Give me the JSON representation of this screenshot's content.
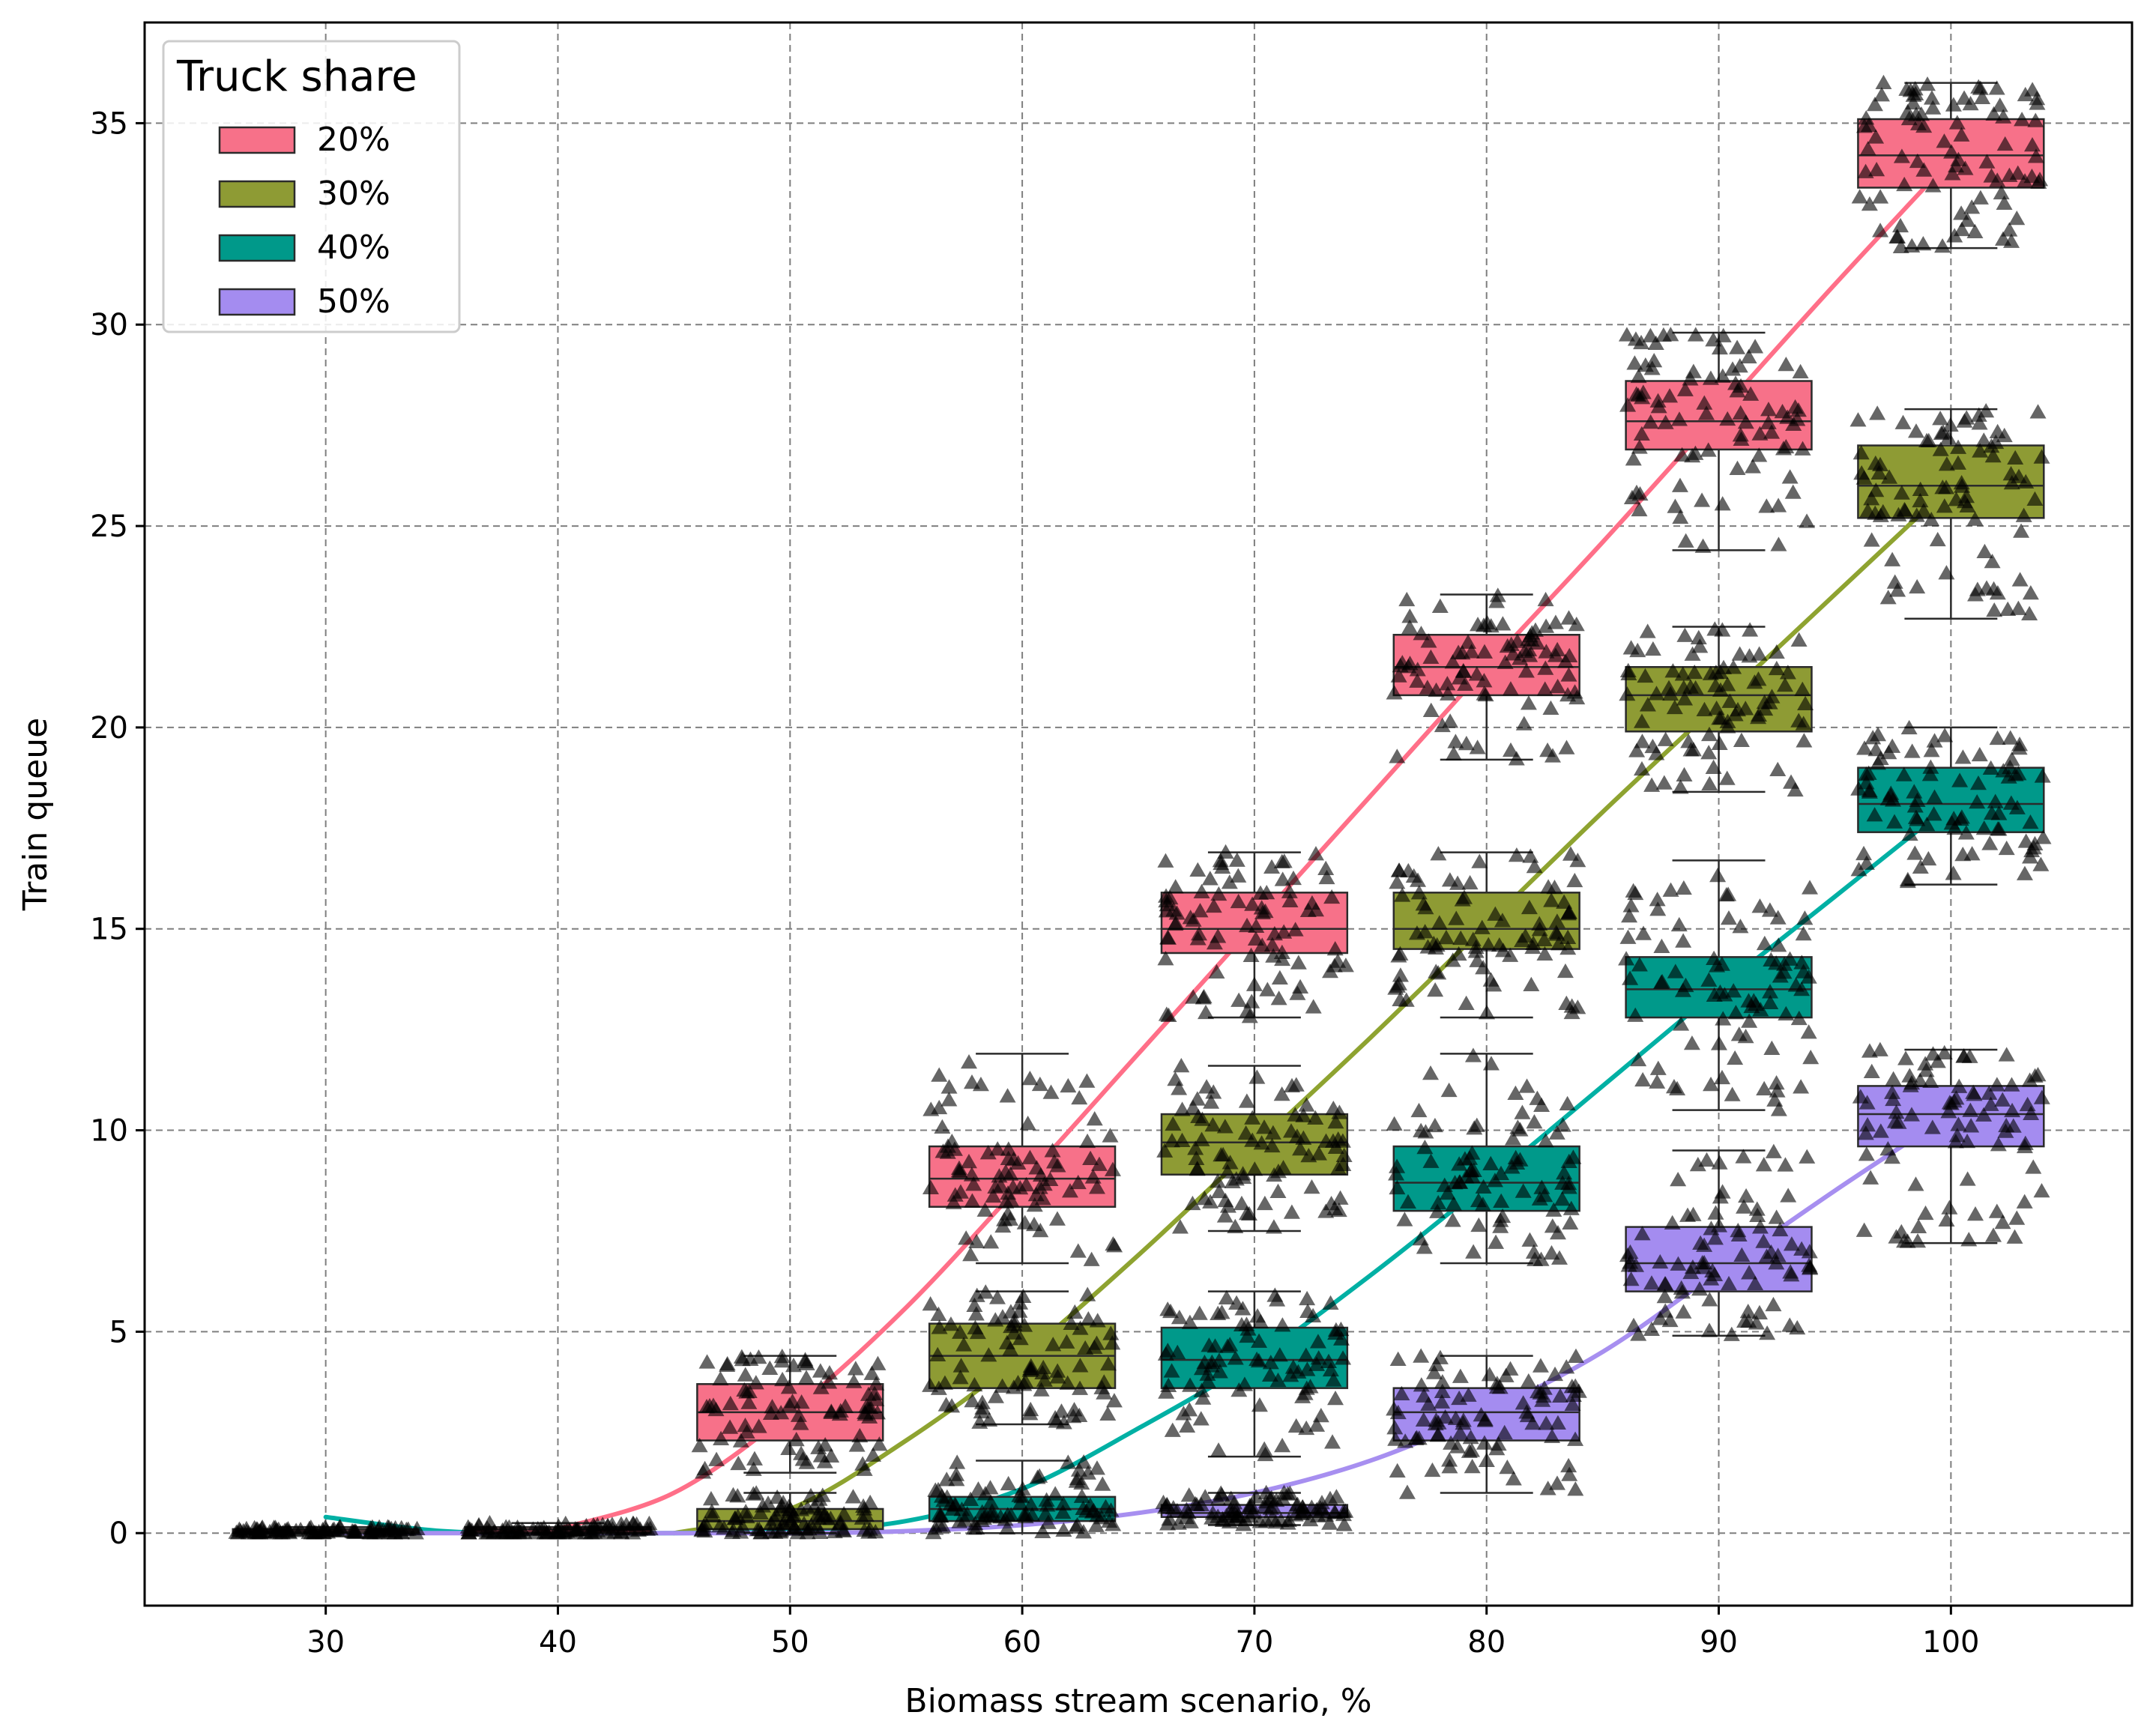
{
  "chart_data": {
    "type": "box",
    "xlabel": "Biomass stream scenario, %",
    "ylabel": "Train queue",
    "categories": [
      "30",
      "40",
      "50",
      "60",
      "70",
      "80",
      "90",
      "100"
    ],
    "x": [
      30,
      40,
      50,
      60,
      70,
      80,
      90,
      100
    ],
    "xlim": [
      22.2,
      107.8
    ],
    "ylim": [
      -1.8,
      37.5
    ],
    "yticks": [
      0,
      5,
      10,
      15,
      20,
      25,
      30,
      35
    ],
    "grid": true,
    "legend": {
      "title": "Truck share",
      "position": "top-left"
    },
    "jitter_marker": "triangle",
    "series": [
      {
        "name": "20%",
        "color": "#f77189",
        "line_color": "#ff6f88",
        "offset": -10,
        "box_x": [
          30,
          40,
          50,
          60,
          70,
          80,
          90,
          100
        ],
        "boxes": [
          {
            "q1": 0.0,
            "median": 0.05,
            "q3": 0.1,
            "whisker_low": 0.0,
            "whisker_high": 0.15
          },
          {
            "q1": 0.0,
            "median": 0.1,
            "q3": 0.15,
            "whisker_low": 0.0,
            "whisker_high": 0.25
          },
          {
            "q1": 2.3,
            "median": 3.0,
            "q3": 3.7,
            "whisker_low": 1.5,
            "whisker_high": 4.4
          },
          {
            "q1": 8.1,
            "median": 8.8,
            "q3": 9.6,
            "whisker_low": 6.7,
            "whisker_high": 11.9
          },
          {
            "q1": 14.4,
            "median": 15.0,
            "q3": 15.9,
            "whisker_low": 12.8,
            "whisker_high": 16.9
          },
          {
            "q1": 20.8,
            "median": 21.5,
            "q3": 22.3,
            "whisker_low": 19.2,
            "whisker_high": 23.3
          },
          {
            "q1": 26.9,
            "median": 27.6,
            "q3": 28.6,
            "whisker_low": 24.4,
            "whisker_high": 29.8
          },
          {
            "q1": 33.4,
            "median": 34.2,
            "q3": 35.1,
            "whisker_low": 31.9,
            "whisker_high": 36.0
          }
        ],
        "trend": [
          [
            40,
            0.1
          ],
          [
            45,
            1.0
          ],
          [
            50,
            3.0
          ],
          [
            55,
            5.6
          ],
          [
            60,
            8.7
          ],
          [
            65,
            11.9
          ],
          [
            70,
            15.1
          ],
          [
            75,
            18.3
          ],
          [
            80,
            21.5
          ],
          [
            85,
            24.6
          ],
          [
            90,
            27.8
          ],
          [
            95,
            31.0
          ],
          [
            100,
            34.1
          ]
        ]
      },
      {
        "name": "30%",
        "color": "#8e9b34",
        "line_color": "#8ea330",
        "offset": 0,
        "box_x": [
          50,
          60,
          70,
          80,
          90,
          100
        ],
        "boxes": [
          {
            "q1": 0.1,
            "median": 0.3,
            "q3": 0.6,
            "whisker_low": 0.0,
            "whisker_high": 1.0
          },
          {
            "q1": 3.6,
            "median": 4.4,
            "q3": 5.2,
            "whisker_low": 2.7,
            "whisker_high": 6.0
          },
          {
            "q1": 8.9,
            "median": 9.7,
            "q3": 10.4,
            "whisker_low": 7.5,
            "whisker_high": 11.6
          },
          {
            "q1": 14.5,
            "median": 15.0,
            "q3": 15.9,
            "whisker_low": 12.8,
            "whisker_high": 16.9
          },
          {
            "q1": 19.9,
            "median": 20.8,
            "q3": 21.5,
            "whisker_low": 18.4,
            "whisker_high": 22.5
          },
          {
            "q1": 25.2,
            "median": 26.0,
            "q3": 27.0,
            "whisker_low": 22.7,
            "whisker_high": 27.9
          }
        ],
        "trend": [
          [
            45,
            0.0
          ],
          [
            50,
            0.6
          ],
          [
            55,
            2.3
          ],
          [
            60,
            4.4
          ],
          [
            65,
            6.9
          ],
          [
            70,
            9.6
          ],
          [
            75,
            12.3
          ],
          [
            80,
            15.1
          ],
          [
            85,
            17.9
          ],
          [
            90,
            20.6
          ],
          [
            95,
            23.3
          ],
          [
            100,
            26.0
          ]
        ]
      },
      {
        "name": "40%",
        "color": "#00998a",
        "line_color": "#00b0a4",
        "offset": 10,
        "box_x": [
          60,
          70,
          80,
          90,
          100
        ],
        "boxes": [
          {
            "q1": 0.3,
            "median": 0.6,
            "q3": 0.9,
            "whisker_low": 0.0,
            "whisker_high": 1.8
          },
          {
            "q1": 3.6,
            "median": 4.3,
            "q3": 5.1,
            "whisker_low": 1.9,
            "whisker_high": 6.0
          },
          {
            "q1": 8.0,
            "median": 8.7,
            "q3": 9.6,
            "whisker_low": 6.7,
            "whisker_high": 11.9
          },
          {
            "q1": 12.8,
            "median": 13.5,
            "q3": 14.3,
            "whisker_low": 10.5,
            "whisker_high": 16.7
          },
          {
            "q1": 17.4,
            "median": 18.1,
            "q3": 19.0,
            "whisker_low": 16.1,
            "whisker_high": 20.0
          }
        ],
        "trend": [
          [
            30,
            0.4
          ],
          [
            35,
            0.05
          ],
          [
            40,
            0.0
          ],
          [
            45,
            0.0
          ],
          [
            50,
            0.05
          ],
          [
            55,
            0.3
          ],
          [
            60,
            1.1
          ],
          [
            65,
            2.6
          ],
          [
            70,
            4.3
          ],
          [
            75,
            6.4
          ],
          [
            80,
            8.7
          ],
          [
            85,
            11.1
          ],
          [
            90,
            13.5
          ],
          [
            95,
            15.8
          ],
          [
            100,
            18.1
          ]
        ]
      },
      {
        "name": "50%",
        "color": "#a48cf0",
        "line_color": "#a78ff0",
        "offset": 20,
        "box_x": [
          70,
          80,
          90,
          100
        ],
        "boxes": [
          {
            "q1": 0.4,
            "median": 0.5,
            "q3": 0.7,
            "whisker_low": 0.2,
            "whisker_high": 1.0
          },
          {
            "q1": 2.3,
            "median": 3.0,
            "q3": 3.6,
            "whisker_low": 1.0,
            "whisker_high": 4.4
          },
          {
            "q1": 6.0,
            "median": 6.7,
            "q3": 7.6,
            "whisker_low": 4.9,
            "whisker_high": 9.5
          },
          {
            "q1": 9.6,
            "median": 10.4,
            "q3": 11.1,
            "whisker_low": 7.2,
            "whisker_high": 12.0
          }
        ],
        "trend": [
          [
            30,
            0.0
          ],
          [
            40,
            0.0
          ],
          [
            50,
            0.0
          ],
          [
            55,
            0.05
          ],
          [
            60,
            0.2
          ],
          [
            65,
            0.5
          ],
          [
            70,
            1.0
          ],
          [
            75,
            1.8
          ],
          [
            80,
            3.0
          ],
          [
            85,
            4.5
          ],
          [
            90,
            6.5
          ],
          [
            95,
            8.5
          ],
          [
            100,
            10.4
          ]
        ]
      }
    ]
  }
}
